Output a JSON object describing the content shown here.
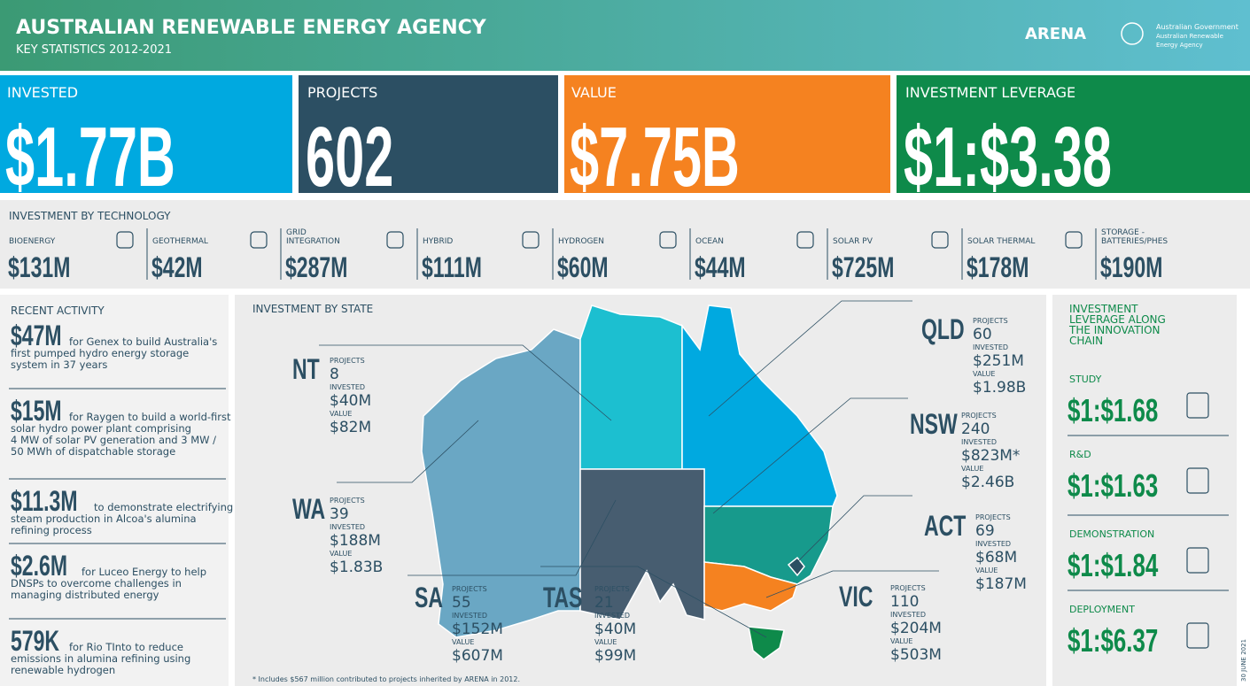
{
  "header": {
    "title": "AUSTRALIAN RENEWABLE ENERGY AGENCY",
    "subtitle": "KEY STATISTICS 2012-2021",
    "logo": "ARENA",
    "gov_lines": [
      "Australian Government",
      "Australian Renewable",
      "Energy Agency"
    ]
  },
  "kpis": [
    {
      "label": "INVESTED",
      "value": "$1.77B"
    },
    {
      "label": "PROJECTS",
      "value": "602"
    },
    {
      "label": "VALUE",
      "value": "$7.75B"
    },
    {
      "label": "INVESTMENT LEVERAGE",
      "value": "$1:$3.38"
    }
  ],
  "technology": {
    "title": "INVESTMENT BY TECHNOLOGY",
    "items": [
      {
        "label": [
          "BIOENERGY"
        ],
        "value": "$131M"
      },
      {
        "label": [
          "GEOTHERMAL"
        ],
        "value": "$42M"
      },
      {
        "label": [
          "GRID",
          "INTEGRATION"
        ],
        "value": "$287M"
      },
      {
        "label": [
          "HYBRID"
        ],
        "value": "$111M"
      },
      {
        "label": [
          "HYDROGEN"
        ],
        "value": "$60M"
      },
      {
        "label": [
          "OCEAN"
        ],
        "value": "$44M"
      },
      {
        "label": [
          "SOLAR PV"
        ],
        "value": "$725M"
      },
      {
        "label": [
          "SOLAR THERMAL"
        ],
        "value": "$178M"
      },
      {
        "label": [
          "STORAGE -",
          "BATTERIES/PHES"
        ],
        "value": "$190M"
      }
    ]
  },
  "recent": {
    "title": "RECENT ACTIVITY",
    "items": [
      {
        "amount": "$47M",
        "lines": [
          "for Genex to build Australia's",
          "first pumped hydro energy storage",
          "system in 37 years"
        ]
      },
      {
        "amount": "$15M",
        "lines": [
          "for Raygen to build a world-first",
          "solar hydro power plant comprising",
          "4 MW of solar PV generation and 3 MW /",
          "50 MWh of dispatchable storage"
        ]
      },
      {
        "amount": "$11.3M",
        "lines": [
          "to demonstrate electrifying",
          "steam production in Alcoa's alumina",
          "refining process"
        ]
      },
      {
        "amount": "$2.6M",
        "lines": [
          "for Luceo Energy to help",
          "DNSPs to overcome challenges in",
          "managing distributed energy"
        ]
      },
      {
        "amount": "579K",
        "lines": [
          "for Rio TInto to reduce",
          "emissions in alumina refining using",
          "renewable hydrogen"
        ]
      }
    ]
  },
  "states": {
    "title": "INVESTMENT BY STATE",
    "labels": {
      "projects": "PROJECTS",
      "invested": "INVESTED",
      "value": "VALUE"
    },
    "items": [
      {
        "name": "NT",
        "projects": "8",
        "invested": "$40M",
        "value": "$82M"
      },
      {
        "name": "WA",
        "projects": "39",
        "invested": "$188M",
        "value": "$1.83B"
      },
      {
        "name": "SA",
        "projects": "55",
        "invested": "$152M",
        "value": "$607M"
      },
      {
        "name": "TAS",
        "projects": "21",
        "invested": "$40M",
        "value": "$99M"
      },
      {
        "name": "QLD",
        "projects": "60",
        "invested": "$251M",
        "value": "$1.98B"
      },
      {
        "name": "NSW",
        "projects": "240",
        "invested": "$823M*",
        "value": "$2.46B"
      },
      {
        "name": "ACT",
        "projects": "69",
        "invested": "$68M",
        "value": "$187M"
      },
      {
        "name": "VIC",
        "projects": "110",
        "invested": "$204M",
        "value": "$503M"
      }
    ],
    "footnote": "* Includes $567 million contributed to projects inherited by ARENA in 2012."
  },
  "leverage": {
    "title": [
      "INVESTMENT",
      "LEVERAGE ALONG",
      "THE INNOVATION",
      "CHAIN"
    ],
    "items": [
      {
        "label": "STUDY",
        "value": "$1:$1.68"
      },
      {
        "label": "R&D",
        "value": "$1:$1.63"
      },
      {
        "label": "DEMONSTRATION",
        "value": "$1:$1.84"
      },
      {
        "label": "DEPLOYMENT",
        "value": "$1:$6.37"
      }
    ]
  },
  "date": "30 JUNE 2021"
}
